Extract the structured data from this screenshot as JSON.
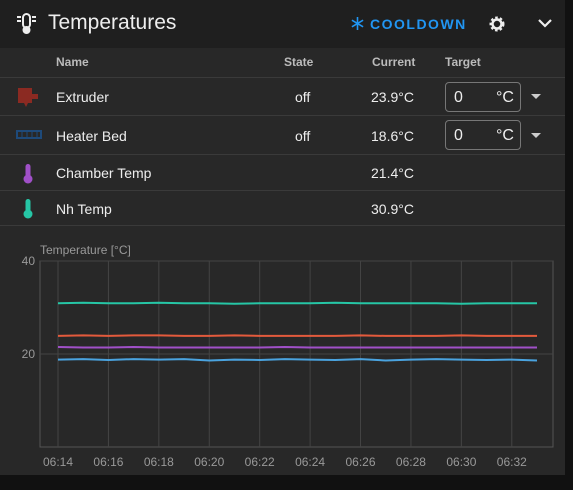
{
  "header": {
    "title": "Temperatures",
    "cooldown": "COOLDOWN"
  },
  "table": {
    "columns": [
      "Name",
      "State",
      "Current",
      "Target"
    ],
    "rows": [
      {
        "name": "Extruder",
        "state": "off",
        "current": "23.9°C",
        "target": "0",
        "unit": "°C"
      },
      {
        "name": "Heater Bed",
        "state": "off",
        "current": "18.6°C",
        "target": "0",
        "unit": "°C"
      },
      {
        "name": "Chamber Temp",
        "current": "21.4°C"
      },
      {
        "name": "Nh Temp",
        "current": "30.9°C"
      }
    ]
  },
  "chart_data": {
    "type": "line",
    "y_label": "Temperature [°C]",
    "x": [
      "06:14",
      "06:15",
      "06:16",
      "06:17",
      "06:18",
      "06:19",
      "06:20",
      "06:21",
      "06:22",
      "06:23",
      "06:24",
      "06:25",
      "06:26",
      "06:27",
      "06:28",
      "06:29",
      "06:30",
      "06:31",
      "06:32",
      "06:33"
    ],
    "series": [
      {
        "color": "#26c6a6",
        "values": [
          30.9,
          31.0,
          30.9,
          30.9,
          31.0,
          30.9,
          30.9,
          30.8,
          30.9,
          30.9,
          30.9,
          31.0,
          30.9,
          30.9,
          30.9,
          30.9,
          30.8,
          30.9,
          30.9,
          30.9
        ]
      },
      {
        "color": "#e35a3c",
        "values": [
          23.9,
          24.0,
          23.9,
          24.0,
          24.0,
          23.9,
          23.9,
          24.0,
          23.9,
          23.9,
          23.9,
          23.9,
          24.0,
          23.9,
          23.9,
          23.9,
          24.0,
          23.9,
          23.9,
          23.9
        ]
      },
      {
        "color": "#a050c8",
        "values": [
          21.5,
          21.4,
          21.4,
          21.5,
          21.4,
          21.4,
          21.4,
          21.4,
          21.4,
          21.5,
          21.4,
          21.4,
          21.4,
          21.4,
          21.4,
          21.4,
          21.4,
          21.4,
          21.4,
          21.4
        ]
      },
      {
        "color": "#4aa3df",
        "values": [
          18.8,
          18.9,
          18.7,
          18.9,
          18.8,
          18.9,
          18.6,
          18.8,
          18.7,
          18.9,
          18.8,
          18.7,
          18.9,
          18.6,
          18.8,
          18.9,
          18.8,
          18.7,
          18.8,
          18.6
        ]
      }
    ],
    "xlim": [
      "06:14",
      "06:33"
    ],
    "xticks": [
      "06:14",
      "06:16",
      "06:18",
      "06:20",
      "06:22",
      "06:24",
      "06:26",
      "06:28",
      "06:30",
      "06:32"
    ],
    "ylim": [
      0,
      40
    ],
    "yticks": [
      20,
      40
    ],
    "grid": true
  }
}
